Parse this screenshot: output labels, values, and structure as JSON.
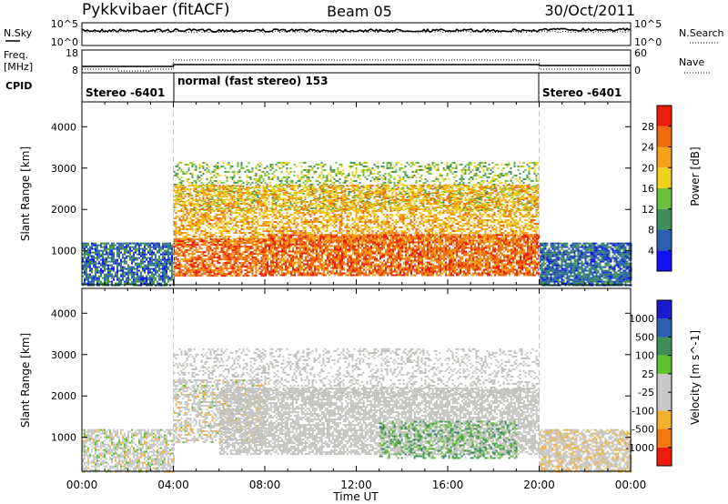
{
  "header": {
    "site": "Pykkvibaer (fitACF)",
    "beam": "Beam 05",
    "date": "30/Oct/2011"
  },
  "top_panels": {
    "nsky_label": "N.Sky",
    "nsky_ticks": [
      "10^5",
      "10^0"
    ],
    "nsearch_label": "N.Search",
    "nsearch_ticks": [
      "10^5",
      "10^0"
    ],
    "freq_label_1": "Freq.",
    "freq_label_2": "[MHz]",
    "freq_ticks": [
      "18",
      "8"
    ],
    "nave_label": "Nave",
    "nave_ticks": [
      "60",
      "0"
    ],
    "cpid_label": "CPID",
    "cpid_segments": [
      {
        "start_hour": 0,
        "end_hour": 4,
        "label": "Stereo -6401"
      },
      {
        "start_hour": 4,
        "end_hour": 20,
        "label": "normal (fast stereo) 153"
      },
      {
        "start_hour": 20,
        "end_hour": 24,
        "label": "Stereo -6401"
      }
    ]
  },
  "colors": {
    "power_scale": [
      "#1010f0",
      "#2a5fb0",
      "#3f8f5a",
      "#6cc03c",
      "#f0d21a",
      "#f5a21a",
      "#f06a10",
      "#ee1c08"
    ],
    "velocity_scale": [
      "#1a1ad0",
      "#2a5fb0",
      "#3f8f5a",
      "#5fc030",
      "#c8c8c8",
      "#c8c8c8",
      "#f2b030",
      "#f07a10",
      "#ee1c08"
    ],
    "ground_scatter": "#c0c0bb"
  },
  "chart_data": [
    {
      "type": "heatmap",
      "name": "Power",
      "xlabel": "",
      "ylabel": "Slant Range [km]",
      "x_unit": "hour UT",
      "xlim": [
        0,
        24
      ],
      "ylim": [
        180,
        4600
      ],
      "yticks": [
        "1000",
        "2000",
        "3000",
        "4000"
      ],
      "colorbar": {
        "label": "Power [dB]",
        "range": [
          0,
          32
        ],
        "ticks": [
          "4",
          "8",
          "12",
          "16",
          "20",
          "24",
          "28"
        ]
      },
      "regions": [
        {
          "x": [
            0,
            4
          ],
          "y": [
            180,
            1200
          ],
          "value_db": 6,
          "coverage": 0.75
        },
        {
          "x": [
            20,
            24
          ],
          "y": [
            180,
            1200
          ],
          "value_db": 6,
          "coverage": 0.85
        },
        {
          "x": [
            4,
            20
          ],
          "y": [
            2000,
            3150
          ],
          "value_db": 14,
          "coverage": 0.35
        },
        {
          "x": [
            4,
            20
          ],
          "y": [
            1200,
            2600
          ],
          "value_db": 22,
          "coverage": 0.55
        },
        {
          "x": [
            4,
            8
          ],
          "y": [
            400,
            1300
          ],
          "value_db": 27,
          "coverage": 0.75
        },
        {
          "x": [
            8,
            20
          ],
          "y": [
            400,
            1400
          ],
          "value_db": 27,
          "coverage": 0.8
        }
      ]
    },
    {
      "type": "heatmap",
      "name": "Velocity",
      "xlabel": "Time UT",
      "ylabel": "Slant Range [km]",
      "x_unit": "hour UT",
      "xlim": [
        0,
        24
      ],
      "xticks": [
        "00:00",
        "04:00",
        "08:00",
        "12:00",
        "16:00",
        "20:00",
        "00:00"
      ],
      "ylim": [
        180,
        4600
      ],
      "yticks": [
        "1000",
        "2000",
        "3000",
        "4000"
      ],
      "colorbar": {
        "label": "Velocity [m s^-1]",
        "range": [
          -1250,
          1250
        ],
        "ticks": [
          "1000",
          "500",
          "100",
          "25",
          "-25",
          "-100",
          "-500",
          "-1000"
        ]
      },
      "regions": [
        {
          "x": [
            0,
            4
          ],
          "y": [
            180,
            1200
          ],
          "value_ms": -150,
          "coverage": 0.65
        },
        {
          "x": [
            20,
            24
          ],
          "y": [
            180,
            1200
          ],
          "value_ms": -300,
          "coverage": 0.75
        },
        {
          "x": [
            4,
            20
          ],
          "y": [
            2000,
            3150
          ],
          "value_ms": 0,
          "coverage": 0.3
        },
        {
          "x": [
            4,
            8
          ],
          "y": [
            900,
            2400
          ],
          "value_ms": -200,
          "coverage": 0.5
        },
        {
          "x": [
            6,
            20
          ],
          "y": [
            600,
            2200
          ],
          "value_ms": 0,
          "coverage": 0.7
        },
        {
          "x": [
            13,
            19
          ],
          "y": [
            500,
            1400
          ],
          "value_ms": 400,
          "coverage": 0.4
        }
      ]
    }
  ]
}
